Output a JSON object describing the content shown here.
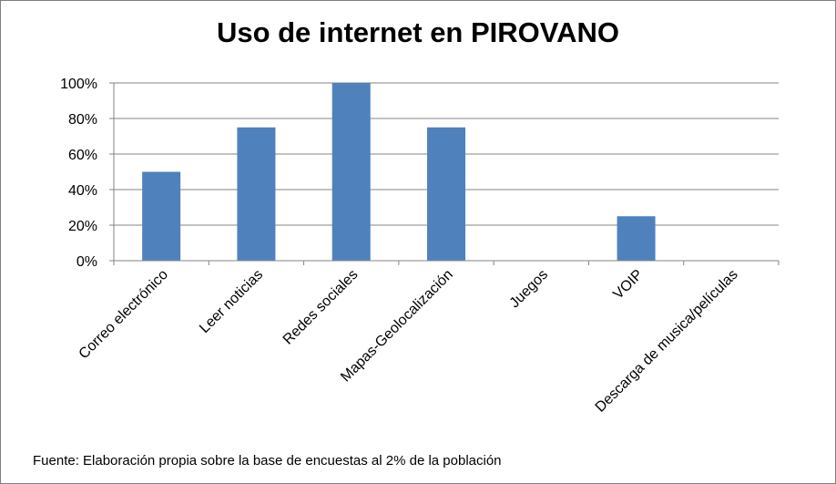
{
  "chart_data": {
    "type": "bar",
    "title": "Uso de internet en PIROVANO",
    "categories": [
      "Correo electrónico",
      "Leer noticias",
      "Redes sociales",
      "Mapas-Geolocalización",
      "Juegos",
      "VOIP",
      "Descarga de musica/películas"
    ],
    "values": [
      50,
      75,
      100,
      75,
      0,
      25,
      0
    ],
    "ylim": [
      0,
      100
    ],
    "yticks": [
      "0%",
      "20%",
      "40%",
      "60%",
      "80%",
      "100%"
    ],
    "grid": true,
    "bar_color": "#4f81bd",
    "source": "Fuente:  Elaboración propia sobre la base de encuestas al 2%  de la población"
  }
}
